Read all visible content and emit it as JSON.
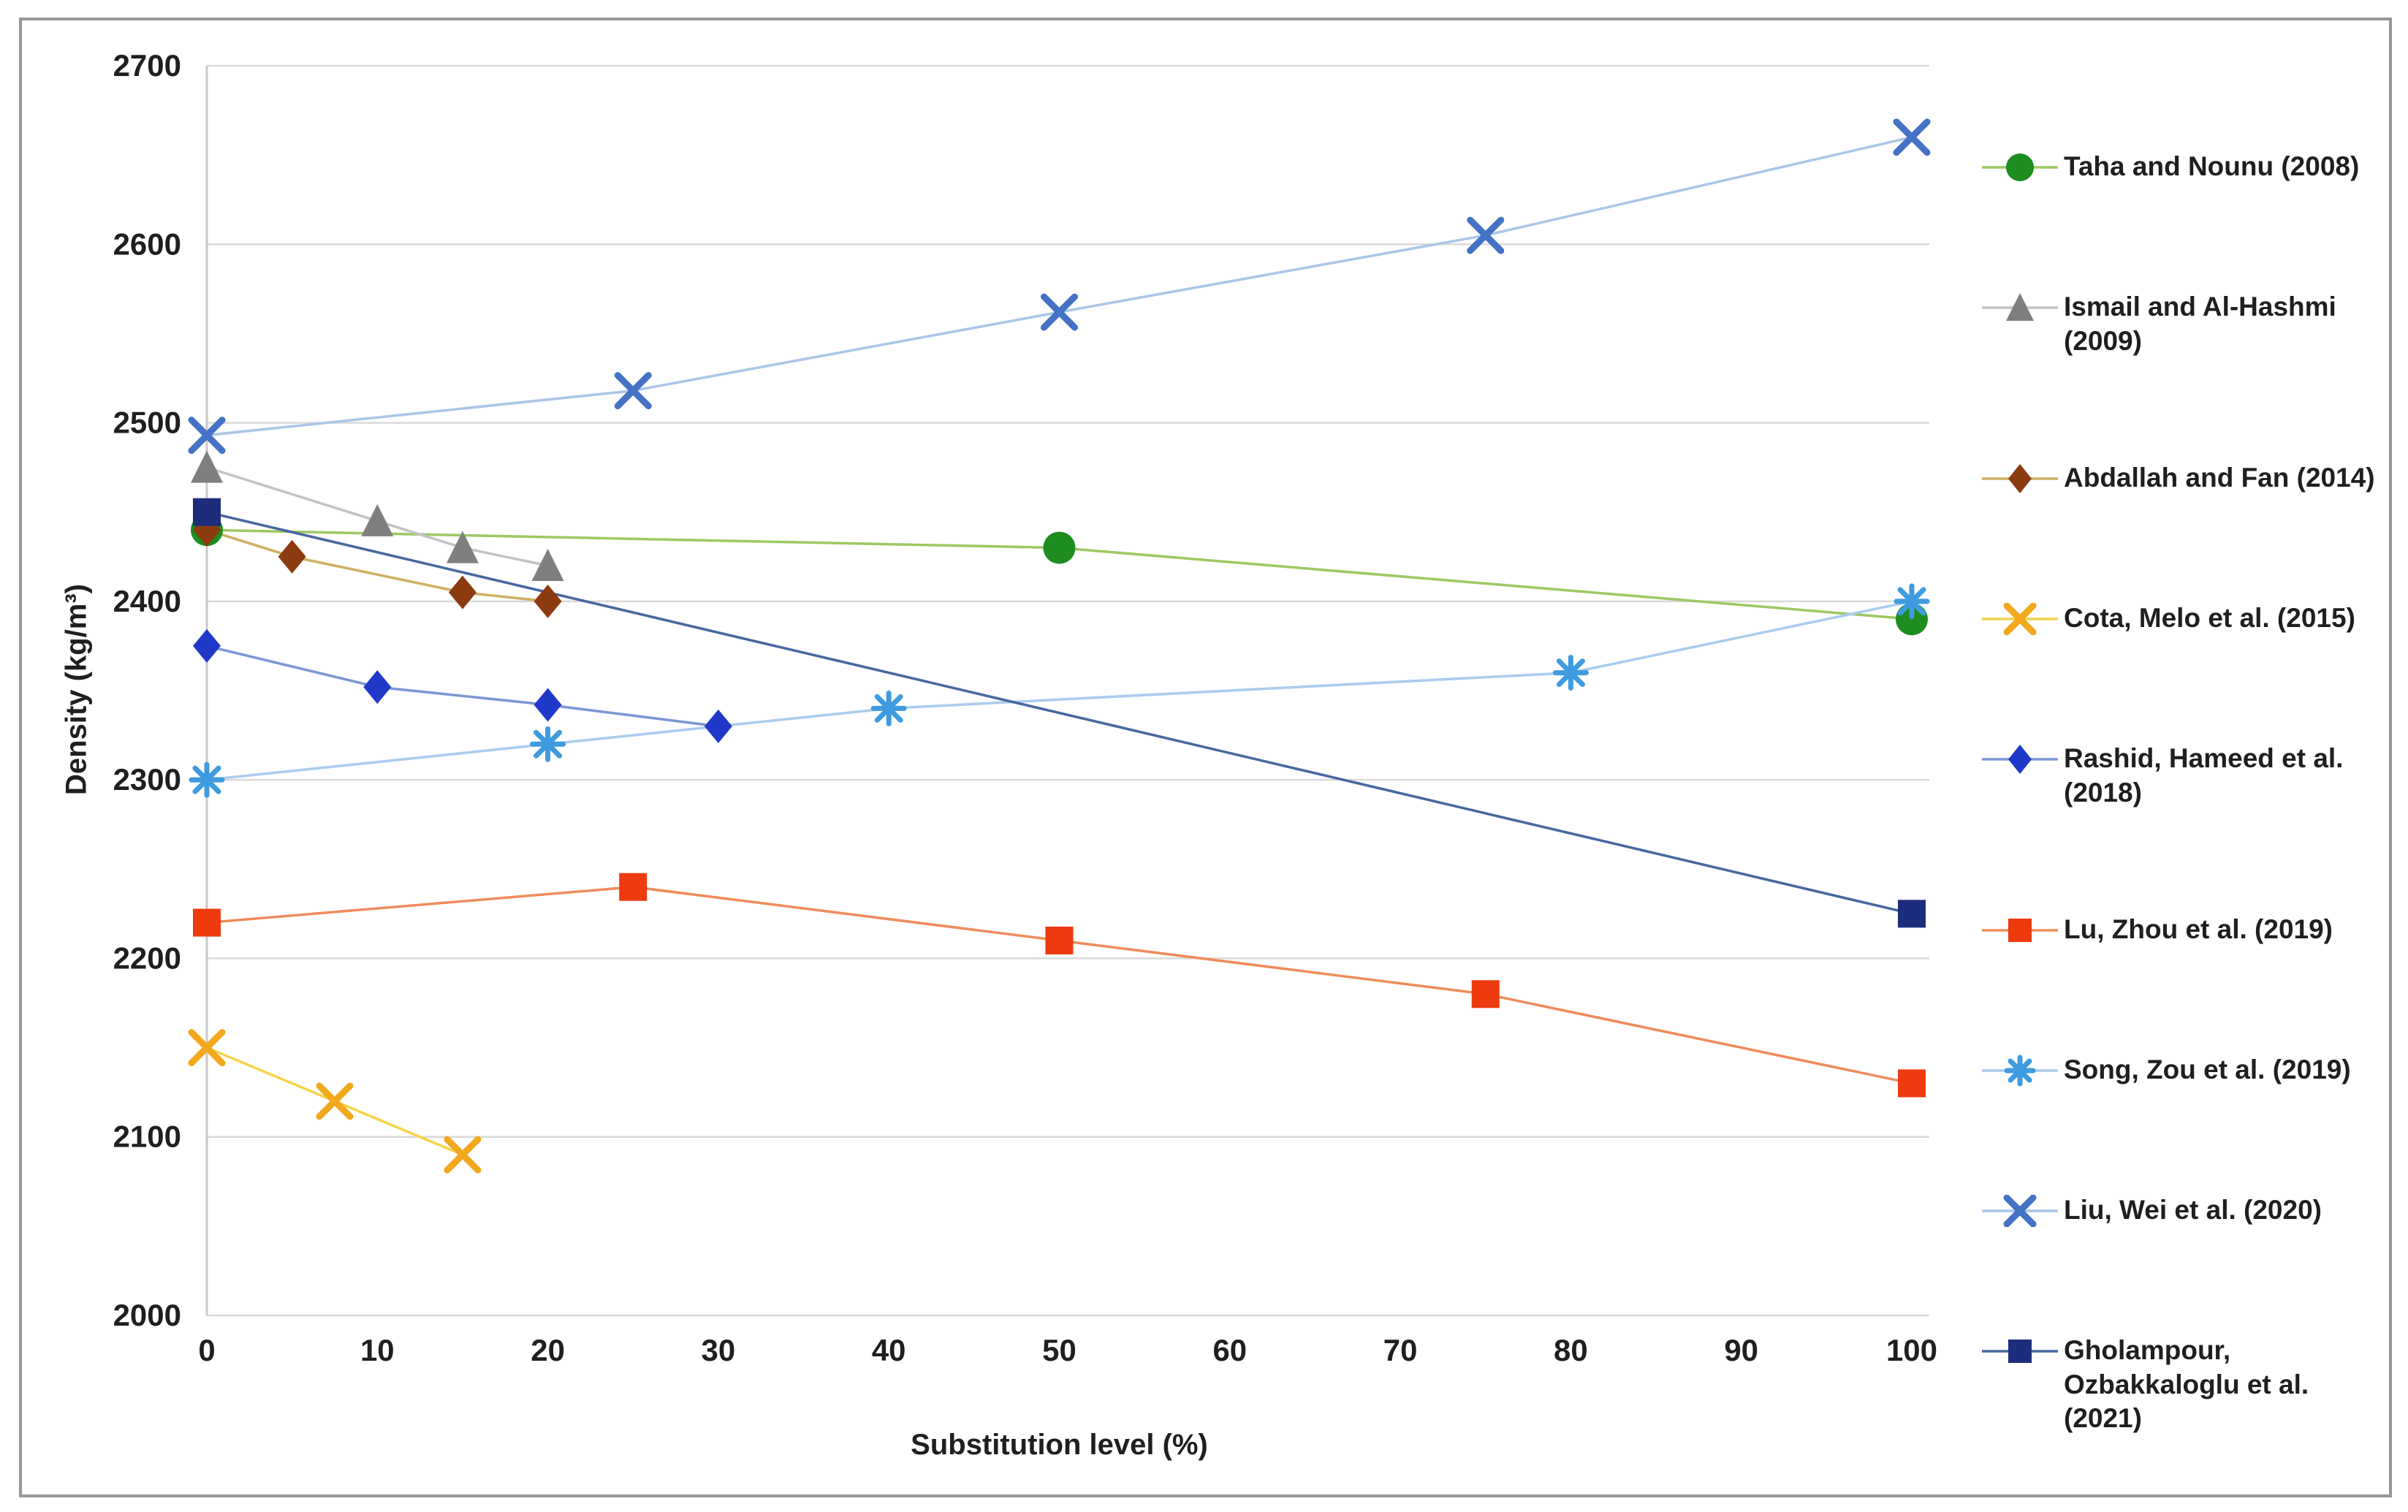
{
  "frame": {
    "border_color": "#979797",
    "background": "#ffffff",
    "gridline_color": "#d9d9d9",
    "axisline_color": "#c9c9c9",
    "text_color": "#1f1f1f"
  },
  "chart_data": {
    "type": "line",
    "title": "",
    "xlabel": "Substitution level (%)",
    "ylabel": "Density (kg/m³)",
    "xlim": [
      0,
      100
    ],
    "ylim": [
      2000,
      2700
    ],
    "xticks": [
      0,
      10,
      20,
      30,
      40,
      50,
      60,
      70,
      80,
      90,
      100
    ],
    "yticks": [
      2000,
      2100,
      2200,
      2300,
      2400,
      2500,
      2600,
      2700
    ],
    "grid": "horizontal",
    "legend_position": "right",
    "series": [
      {
        "name": "Taha and Nounu (2008)",
        "marker": "circle",
        "marker_color": "#1E8C1E",
        "line_color": "#9CC862",
        "x": [
          0,
          50,
          100
        ],
        "y": [
          2440,
          2430,
          2390
        ]
      },
      {
        "name": "Ismail and Al-Hashmi (2009)",
        "marker": "triangle",
        "marker_color": "#7F7F7F",
        "line_color": "#C3C3C3",
        "x": [
          0,
          10,
          15,
          20
        ],
        "y": [
          2475,
          2445,
          2430,
          2420
        ]
      },
      {
        "name": "Abdallah and Fan (2014)",
        "marker": "diamond",
        "marker_color": "#8C3A10",
        "line_color": "#CFAF62",
        "x": [
          0,
          5,
          15,
          20
        ],
        "y": [
          2440,
          2425,
          2405,
          2400
        ]
      },
      {
        "name": "Cota, Melo et al. (2015)",
        "marker": "x",
        "marker_color": "#F2A81C",
        "line_color": "#F6D44A",
        "x": [
          0,
          7.5,
          15
        ],
        "y": [
          2150,
          2120,
          2090
        ]
      },
      {
        "name": "Rashid, Hameed et al. (2018)",
        "marker": "diamond",
        "marker_color": "#2038C8",
        "line_color": "#7B96D6",
        "x": [
          0,
          10,
          20,
          30
        ],
        "y": [
          2375,
          2352,
          2342,
          2330
        ]
      },
      {
        "name": "Lu, Zhou et al. (2019)",
        "marker": "square",
        "marker_color": "#EE3A0F",
        "line_color": "#F08B5A",
        "x": [
          0,
          25,
          50,
          75,
          100
        ],
        "y": [
          2220,
          2240,
          2210,
          2180,
          2130
        ]
      },
      {
        "name": "Song, Zou et al. (2019)",
        "marker": "asterisk",
        "marker_color": "#3F9BE0",
        "line_color": "#A9CCEE",
        "x": [
          0,
          20,
          40,
          80,
          100
        ],
        "y": [
          2300,
          2320,
          2340,
          2360,
          2400
        ]
      },
      {
        "name": "Liu, Wei et al. (2020)",
        "marker": "x",
        "marker_color": "#4472C4",
        "line_color": "#A9C6E8",
        "x": [
          0,
          25,
          50,
          75,
          100
        ],
        "y": [
          2493,
          2518,
          2562,
          2605,
          2660
        ]
      },
      {
        "name": "Gholampour, Ozbakkaloglu et al. (2021)",
        "marker": "square",
        "marker_color": "#1D2D7C",
        "line_color": "#46689F",
        "x": [
          0,
          100
        ],
        "y": [
          2450,
          2225
        ]
      }
    ]
  }
}
